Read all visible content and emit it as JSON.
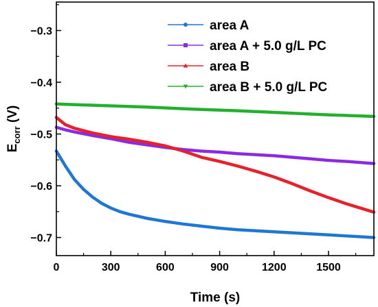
{
  "chart_data": {
    "type": "line",
    "title": "",
    "xlabel": "Time (s)",
    "ylabel_main": "E",
    "ylabel_sub": "corr",
    "ylabel_unit": " (V)",
    "xlim": [
      0,
      1750
    ],
    "ylim": [
      -0.735,
      -0.245
    ],
    "xticks": [
      0,
      300,
      600,
      900,
      1200,
      1500
    ],
    "yticks": [
      -0.3,
      -0.4,
      -0.5,
      -0.6,
      -0.7
    ],
    "xtick_labels": [
      "0",
      "300",
      "600",
      "900",
      "1200",
      "1500"
    ],
    "ytick_labels": [
      "−0.3",
      "−0.4",
      "−0.5",
      "−0.6",
      "−0.7"
    ],
    "grid": false,
    "legend_position": "top-right",
    "series": [
      {
        "name": "area A",
        "color": "#1f77d4",
        "marker": "circle",
        "x": [
          0,
          50,
          100,
          150,
          200,
          250,
          300,
          350,
          400,
          500,
          600,
          700,
          800,
          900,
          1000,
          1100,
          1200,
          1300,
          1400,
          1500,
          1600,
          1750
        ],
        "y": [
          -0.533,
          -0.562,
          -0.588,
          -0.607,
          -0.622,
          -0.634,
          -0.643,
          -0.65,
          -0.655,
          -0.663,
          -0.669,
          -0.674,
          -0.678,
          -0.682,
          -0.685,
          -0.687,
          -0.689,
          -0.691,
          -0.693,
          -0.695,
          -0.697,
          -0.7
        ]
      },
      {
        "name": "area A + 5.0 g/L PC",
        "color": "#8a2be2",
        "marker": "square",
        "x": [
          0,
          50,
          100,
          200,
          300,
          400,
          500,
          600,
          700,
          800,
          900,
          1000,
          1100,
          1200,
          1300,
          1400,
          1500,
          1600,
          1750
        ],
        "y": [
          -0.487,
          -0.492,
          -0.496,
          -0.503,
          -0.509,
          -0.516,
          -0.521,
          -0.526,
          -0.53,
          -0.533,
          -0.535,
          -0.538,
          -0.54,
          -0.542,
          -0.545,
          -0.548,
          -0.551,
          -0.553,
          -0.557
        ]
      },
      {
        "name": "area B",
        "color": "#e8202a",
        "marker": "triangle-up",
        "x": [
          0,
          50,
          100,
          200,
          300,
          400,
          500,
          600,
          700,
          800,
          900,
          1000,
          1100,
          1200,
          1300,
          1400,
          1500,
          1600,
          1750
        ],
        "y": [
          -0.468,
          -0.482,
          -0.489,
          -0.498,
          -0.505,
          -0.51,
          -0.516,
          -0.523,
          -0.533,
          -0.545,
          -0.553,
          -0.562,
          -0.572,
          -0.583,
          -0.596,
          -0.61,
          -0.623,
          -0.635,
          -0.651
        ]
      },
      {
        "name": "area B + 5.0 g/L PC",
        "color": "#22b02e",
        "marker": "triangle-down",
        "x": [
          0,
          250,
          500,
          750,
          1000,
          1250,
          1500,
          1750
        ],
        "y": [
          -0.442,
          -0.445,
          -0.448,
          -0.452,
          -0.455,
          -0.459,
          -0.463,
          -0.466
        ]
      }
    ]
  }
}
